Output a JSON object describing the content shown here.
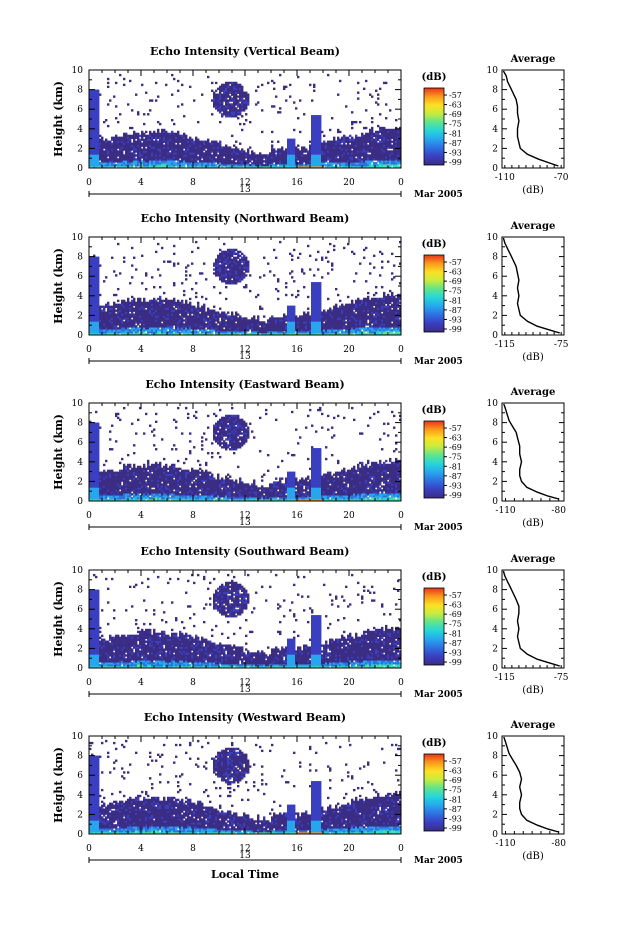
{
  "colorbar": {
    "unit": "(dB)",
    "ticks": [
      "-57",
      "-63",
      "-69",
      "-75",
      "-81",
      "-87",
      "-93",
      "-99"
    ],
    "colors": [
      "#3b2d83",
      "#3a3ec0",
      "#2f6fe0",
      "#27a6ee",
      "#25d6d9",
      "#5ee48e",
      "#c7ec3e",
      "#fde024",
      "#fb9a1c",
      "#e8351c"
    ]
  },
  "footer": {
    "xlabel": "Local Time"
  },
  "chart_data": [
    {
      "type": "heatmap",
      "title": "Echo Intensity (Vertical Beam)",
      "ylabel": "Height (km)",
      "xticks": [
        "0",
        "4",
        "8",
        "12",
        "16",
        "20",
        "0"
      ],
      "day_label": "13",
      "date_label": "Mar 2005",
      "xlim": [
        0,
        24
      ],
      "ylim": [
        0,
        10
      ],
      "yticks": [
        "0",
        "2",
        "4",
        "6",
        "8",
        "10"
      ],
      "colorbar_range": [
        -99,
        -57
      ],
      "profile": {
        "title": "Average",
        "xlabel": "(dB)",
        "xtick_labels": [
          "-110",
          "-70"
        ],
        "xlim": [
          -112,
          -68
        ],
        "heights": [
          0.2,
          0.5,
          0.9,
          1.4,
          2,
          2.6,
          3.2,
          4,
          4.8,
          5.6,
          6.3,
          7,
          7.6,
          8.2,
          8.8,
          9.4,
          9.9
        ],
        "values": [
          -72,
          -78,
          -86,
          -94,
          -99,
          -100,
          -101,
          -101,
          -100,
          -101,
          -101,
          -102,
          -104,
          -106,
          -108,
          -109,
          -111
        ]
      }
    },
    {
      "type": "heatmap",
      "title": "Echo Intensity (Northward Beam)",
      "ylabel": "Height (km)",
      "xticks": [
        "0",
        "4",
        "8",
        "12",
        "16",
        "20",
        "0"
      ],
      "day_label": "13",
      "date_label": "Mar 2005",
      "xlim": [
        0,
        24
      ],
      "ylim": [
        0,
        10
      ],
      "yticks": [
        "0",
        "2",
        "4",
        "6",
        "8",
        "10"
      ],
      "colorbar_range": [
        -99,
        -57
      ],
      "profile": {
        "title": "Average",
        "xlabel": "(dB)",
        "xtick_labels": [
          "-115",
          "-75"
        ],
        "xlim": [
          -117,
          -73
        ],
        "heights": [
          0.2,
          0.5,
          0.9,
          1.4,
          2,
          2.6,
          3.2,
          4,
          4.8,
          5.6,
          6.3,
          7,
          7.6,
          8.2,
          8.8,
          9.4,
          9.9
        ],
        "values": [
          -76,
          -83,
          -92,
          -99,
          -104,
          -105,
          -106,
          -105,
          -106,
          -105,
          -106,
          -107,
          -109,
          -111,
          -113,
          -115,
          -116
        ]
      }
    },
    {
      "type": "heatmap",
      "title": "Echo Intensity (Eastward Beam)",
      "ylabel": "Height (km)",
      "xticks": [
        "0",
        "4",
        "8",
        "12",
        "16",
        "20",
        "0"
      ],
      "day_label": "13",
      "date_label": "Mar 2005",
      "xlim": [
        0,
        24
      ],
      "ylim": [
        0,
        10
      ],
      "yticks": [
        "0",
        "2",
        "4",
        "6",
        "8",
        "10"
      ],
      "colorbar_range": [
        -99,
        -57
      ],
      "profile": {
        "title": "Average",
        "xlabel": "(dB)",
        "xtick_labels": [
          "-110",
          "-80"
        ],
        "xlim": [
          -112,
          -77
        ],
        "heights": [
          0.2,
          0.5,
          0.9,
          1.4,
          2,
          2.6,
          3.2,
          4,
          4.8,
          5.6,
          6.3,
          7,
          7.6,
          8.2,
          8.8,
          9.4,
          9.9
        ],
        "values": [
          -80,
          -86,
          -92,
          -98,
          -101,
          -102,
          -102,
          -101,
          -102,
          -102,
          -103,
          -104,
          -106,
          -108,
          -109,
          -110,
          -111
        ]
      }
    },
    {
      "type": "heatmap",
      "title": "Echo Intensity (Southward Beam)",
      "ylabel": "Height (km)",
      "xticks": [
        "0",
        "4",
        "8",
        "12",
        "16",
        "20",
        "0"
      ],
      "day_label": "13",
      "date_label": "Mar 2005",
      "xlim": [
        0,
        24
      ],
      "ylim": [
        0,
        10
      ],
      "yticks": [
        "0",
        "2",
        "4",
        "6",
        "8",
        "10"
      ],
      "colorbar_range": [
        -99,
        -57
      ],
      "profile": {
        "title": "Average",
        "xlabel": "(dB)",
        "xtick_labels": [
          "-115",
          "-75"
        ],
        "xlim": [
          -117,
          -73
        ],
        "heights": [
          0.2,
          0.5,
          0.9,
          1.4,
          2,
          2.6,
          3.2,
          4,
          4.8,
          5.6,
          6.3,
          7,
          7.6,
          8.2,
          8.8,
          9.4,
          9.9
        ],
        "values": [
          -76,
          -83,
          -92,
          -99,
          -104,
          -105,
          -106,
          -105,
          -106,
          -105,
          -105,
          -107,
          -109,
          -111,
          -113,
          -115,
          -116
        ]
      }
    },
    {
      "type": "heatmap",
      "title": "Echo Intensity (Westward Beam)",
      "ylabel": "Height (km)",
      "xticks": [
        "0",
        "4",
        "8",
        "12",
        "16",
        "20",
        "0"
      ],
      "day_label": "13",
      "date_label": "Mar 2005",
      "xlim": [
        0,
        24
      ],
      "ylim": [
        0,
        10
      ],
      "yticks": [
        "0",
        "2",
        "4",
        "6",
        "8",
        "10"
      ],
      "colorbar_range": [
        -99,
        -57
      ],
      "profile": {
        "title": "Average",
        "xlabel": "(dB)",
        "xtick_labels": [
          "-110",
          "-80"
        ],
        "xlim": [
          -112,
          -77
        ],
        "heights": [
          0.2,
          0.5,
          0.9,
          1.4,
          2,
          2.6,
          3.2,
          4,
          4.8,
          5.6,
          6.3,
          7,
          7.6,
          8.2,
          8.8,
          9.4,
          9.9
        ],
        "values": [
          -80,
          -86,
          -92,
          -98,
          -101,
          -102,
          -102,
          -101,
          -102,
          -101,
          -102,
          -104,
          -106,
          -108,
          -109,
          -110,
          -111
        ]
      }
    }
  ]
}
